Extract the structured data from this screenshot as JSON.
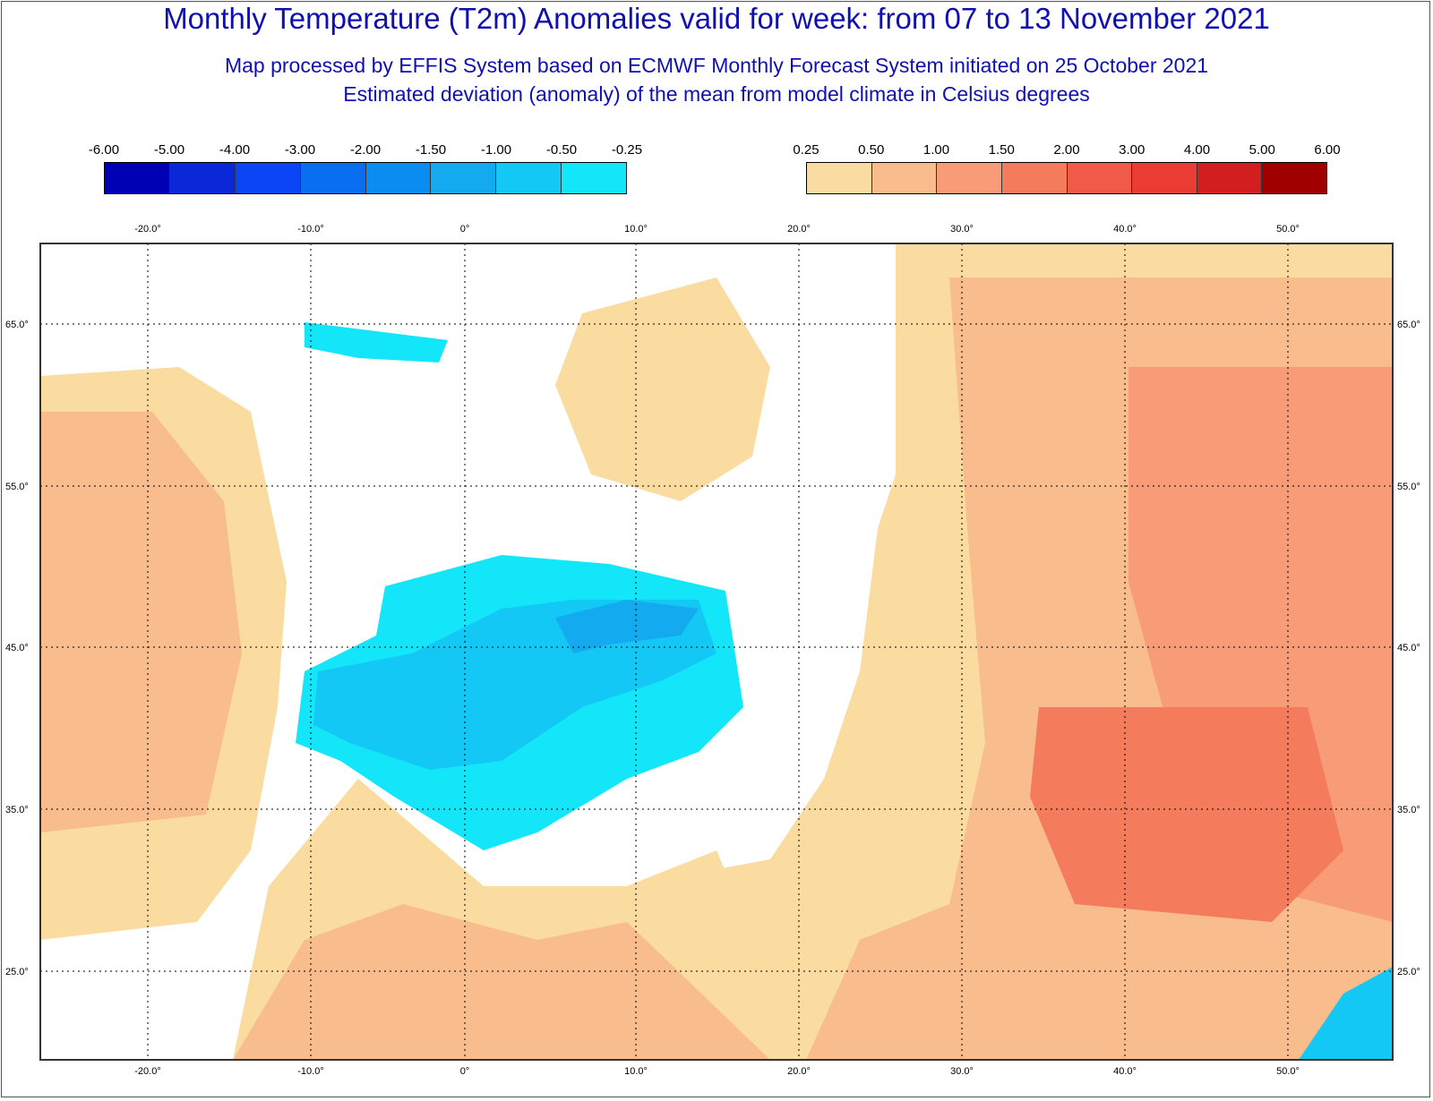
{
  "title": "Monthly Temperature (T2m) Anomalies valid for week: from 07 to 13 November 2021",
  "subtitle_1": "Map processed by EFFIS System based on ECMWF Monthly Forecast System initiated on 25 October 2021",
  "subtitle_2": "Estimated deviation (anomaly) of the mean from model climate in Celsius degrees",
  "legend_negative": {
    "labels": [
      "-6.00",
      "-5.00",
      "-4.00",
      "-3.00",
      "-2.00",
      "-1.50",
      "-1.00",
      "-0.50",
      "-0.25"
    ],
    "colors": [
      "#0000b4",
      "#0a28d8",
      "#0a46f5",
      "#0a6ef0",
      "#0a8cf0",
      "#14aaf0",
      "#14c8f5",
      "#14e6fa"
    ]
  },
  "legend_positive": {
    "labels": [
      "0.25",
      "0.50",
      "1.00",
      "1.50",
      "2.00",
      "3.00",
      "4.00",
      "5.00",
      "6.00"
    ],
    "colors": [
      "#fbdca0",
      "#f9bc8c",
      "#f89c78",
      "#f47c5c",
      "#f05a46",
      "#ea3c32",
      "#d21e1e",
      "#a00000"
    ]
  },
  "axes": {
    "top_lon_labels": [
      "-20.0°",
      "-10.0°",
      "0°",
      "10.0°",
      "20.0°",
      "30.0°",
      "40.0°",
      "50.0°"
    ],
    "bottom_lon_labels": [
      "-20.0°",
      "-10.0°",
      "0°",
      "10.0°",
      "20.0°",
      "30.0°",
      "40.0°",
      "50.0°"
    ],
    "left_lat_labels": [
      "65.0°",
      "55.0°",
      "45.0°",
      "35.0°",
      "25.0°"
    ],
    "right_lat_labels": [
      "65.0°",
      "55.0°",
      "45.0°",
      "35.0°",
      "25.0°"
    ]
  },
  "map_colors": {
    "ocean_white": "#ffffff",
    "warm_025": "#fbdca0",
    "warm_050": "#f9bc8c",
    "warm_100": "#f89c78",
    "warm_150": "#f47c5c",
    "warm_200": "#f05a46",
    "cold_025": "#14e6fa",
    "cold_050": "#14c8f5",
    "cold_100": "#14aaf0",
    "cold_150": "#0a8cf0",
    "coast": "#333333"
  }
}
